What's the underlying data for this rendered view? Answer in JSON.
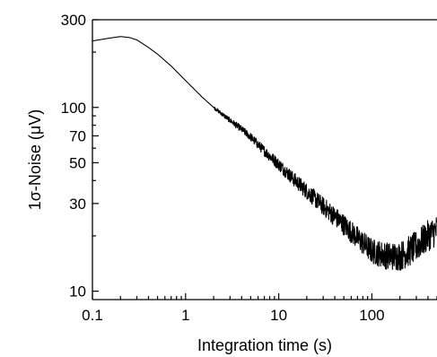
{
  "chart_data": {
    "type": "line",
    "title": "",
    "xlabel": "Integration time (s)",
    "ylabel": "1σ-Noise (μV)",
    "x_scale": "log",
    "y_scale": "log",
    "xlim": [
      0.1,
      500
    ],
    "ylim": [
      9,
      300
    ],
    "x_major_ticks": [
      0.1,
      1,
      10,
      100
    ],
    "x_tick_labels": [
      "0.1",
      "1",
      "10",
      "100"
    ],
    "y_ticks": [
      10,
      30,
      50,
      70,
      100,
      300
    ],
    "y_tick_labels": [
      "10",
      "30",
      "50",
      "70",
      "100",
      "300"
    ],
    "grid": false,
    "legend": "none",
    "colors": {
      "line": "#000000",
      "axes": "#000000",
      "background": "#ffffff"
    },
    "series": [
      {
        "x": [
          0.1,
          0.15,
          0.2,
          0.25,
          0.3,
          0.4,
          0.5,
          0.7,
          1,
          1.5,
          2,
          3,
          4,
          5,
          7,
          10,
          15,
          20,
          30,
          40,
          50,
          70,
          100,
          150,
          200,
          250,
          300,
          400,
          500
        ],
        "y": [
          230,
          238,
          243,
          240,
          233,
          212,
          195,
          168,
          140,
          114,
          100,
          85,
          76,
          69,
          58,
          49,
          40,
          35,
          29,
          25.5,
          23,
          19.5,
          16.5,
          15.5,
          15.5,
          16.5,
          17.5,
          20,
          21.5
        ]
      }
    ]
  }
}
